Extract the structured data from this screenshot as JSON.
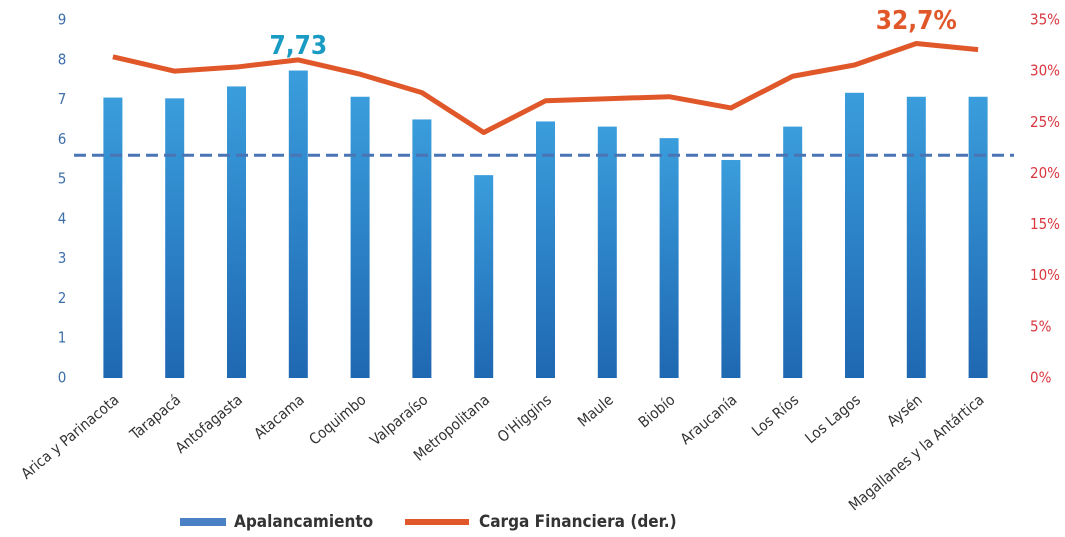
{
  "chart_data": {
    "type": "bar_line",
    "categories": [
      "Arica y Parinacota",
      "Tarapacá",
      "Antofagasta",
      "Atacama",
      "Coquimbo",
      "Valparaíso",
      "Metropolitana",
      "O'Higgins",
      "Maule",
      "Biobío",
      "Araucanía",
      "Los Ríos",
      "Los Lagos",
      "Aysén",
      "Magallanes y la Antártica"
    ],
    "series": [
      {
        "name": "Apalancamiento",
        "type": "bar",
        "color": "#2a7fc8",
        "axis": "y",
        "values": [
          7.05,
          7.03,
          7.33,
          7.73,
          7.07,
          6.5,
          5.1,
          6.45,
          6.32,
          6.03,
          5.48,
          6.32,
          7.17,
          7.07,
          7.07
        ],
        "value_labels": [
          null,
          null,
          null,
          "7,73",
          null,
          null,
          null,
          null,
          null,
          null,
          null,
          null,
          null,
          null,
          null
        ]
      },
      {
        "name": "Carga Financiera (der.)",
        "type": "line",
        "color": "#e0582a",
        "axis": "y2",
        "values": [
          31.4,
          30.0,
          30.4,
          31.1,
          29.7,
          27.9,
          24.0,
          27.1,
          27.3,
          27.5,
          26.4,
          29.5,
          30.6,
          32.7,
          32.1
        ],
        "value_labels": [
          null,
          null,
          null,
          null,
          null,
          null,
          null,
          null,
          null,
          null,
          null,
          null,
          null,
          "32,7%",
          null
        ]
      }
    ],
    "reference_line": 5.6,
    "reference_color": "#4a75b5",
    "ylim": [
      0,
      9
    ],
    "yticks": [
      0,
      1,
      2,
      3,
      4,
      5,
      6,
      7,
      8,
      9
    ],
    "y2lim": [
      0,
      35
    ],
    "y2ticks": [
      {
        "value": 0,
        "label": "0%"
      },
      {
        "value": 5,
        "label": "5%"
      },
      {
        "value": 10,
        "label": "10%"
      },
      {
        "value": 15,
        "label": "15%"
      },
      {
        "value": 20,
        "label": "20%"
      },
      {
        "value": 25,
        "label": "25%"
      },
      {
        "value": 30,
        "label": "30%"
      },
      {
        "value": 35,
        "label": "35%"
      }
    ],
    "legend": "bottom"
  }
}
